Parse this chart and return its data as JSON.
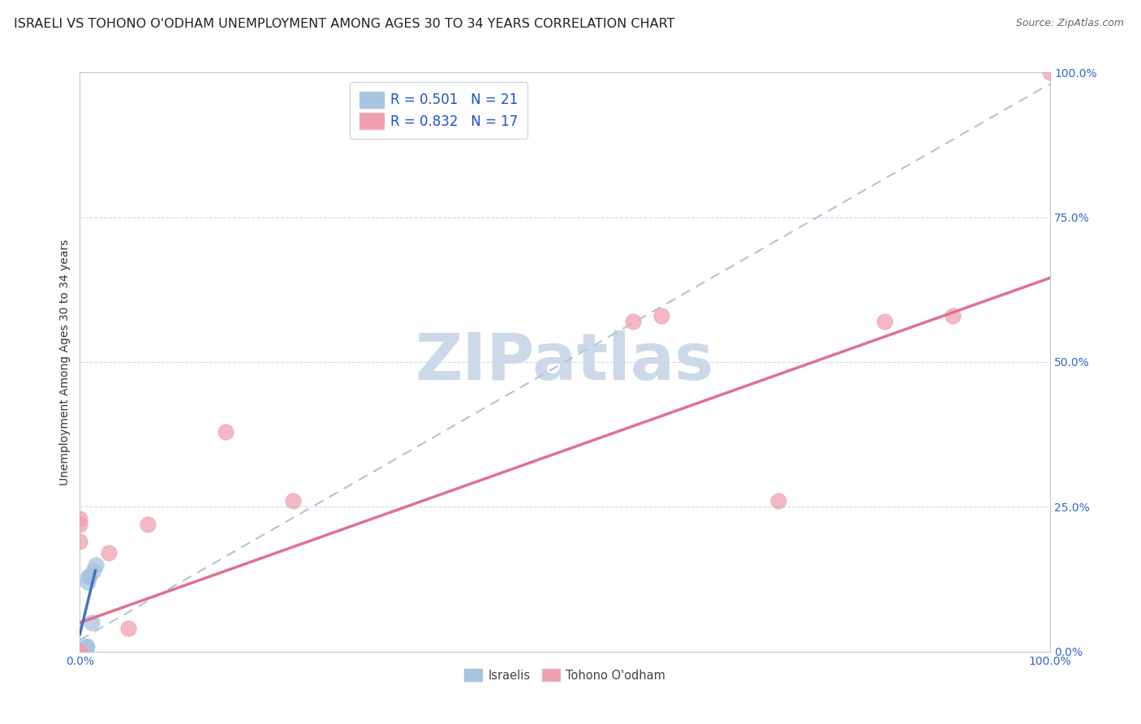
{
  "title": "ISRAELI VS TOHONO O'ODHAM UNEMPLOYMENT AMONG AGES 30 TO 34 YEARS CORRELATION CHART",
  "source": "Source: ZipAtlas.com",
  "ylabel": "Unemployment Among Ages 30 to 34 years",
  "xlabel": "",
  "xlim": [
    0.0,
    1.0
  ],
  "ylim": [
    0.0,
    1.0
  ],
  "xtick_labels": [
    "0.0%",
    "100.0%"
  ],
  "xtick_vals": [
    0.0,
    1.0
  ],
  "ytick_labels": [
    "100.0%",
    "75.0%",
    "50.0%",
    "25.0%",
    "0.0%"
  ],
  "ytick_vals": [
    1.0,
    0.75,
    0.5,
    0.25,
    0.0
  ],
  "israelis_x": [
    0.0,
    0.0,
    0.0,
    0.0,
    0.0,
    0.0,
    0.002,
    0.003,
    0.003,
    0.004,
    0.004,
    0.005,
    0.006,
    0.006,
    0.007,
    0.008,
    0.009,
    0.01,
    0.012,
    0.014,
    0.016
  ],
  "israelis_y": [
    0.0,
    0.0,
    0.0,
    0.0,
    0.001,
    0.001,
    0.0,
    0.001,
    0.002,
    0.001,
    0.003,
    0.005,
    0.005,
    0.008,
    0.01,
    0.12,
    0.13,
    0.13,
    0.05,
    0.14,
    0.15
  ],
  "tohono_x": [
    0.0,
    0.0,
    0.0,
    0.0,
    0.0,
    0.0,
    0.03,
    0.05,
    0.07,
    0.15,
    0.22,
    0.57,
    0.6,
    0.72,
    0.83,
    0.9,
    1.0
  ],
  "tohono_y": [
    0.0,
    0.0,
    0.0,
    0.22,
    0.23,
    0.19,
    0.17,
    0.04,
    0.22,
    0.38,
    0.26,
    0.57,
    0.58,
    0.26,
    0.57,
    0.58,
    1.0
  ],
  "israeli_color": "#a8c4e0",
  "tohono_color": "#f0a0b0",
  "israeli_line_color": "#4472c4",
  "tohono_line_color": "#e07090",
  "dashed_line_color": "#b0c4d8",
  "israeli_R": 0.501,
  "israeli_N": 21,
  "tohono_R": 0.832,
  "tohono_N": 17,
  "watermark_color": "#cdd8e8",
  "background_color": "#ffffff",
  "grid_color": "#d0d8e0",
  "title_fontsize": 11.5,
  "axis_fontsize": 10,
  "tick_fontsize": 10,
  "marker_size": 14,
  "israeli_line_slope": 5.5,
  "israeli_line_intercept": 0.03,
  "tohono_line_slope": 0.62,
  "tohono_line_intercept": 0.05,
  "dash_slope": 0.98,
  "dash_intercept": 0.02
}
